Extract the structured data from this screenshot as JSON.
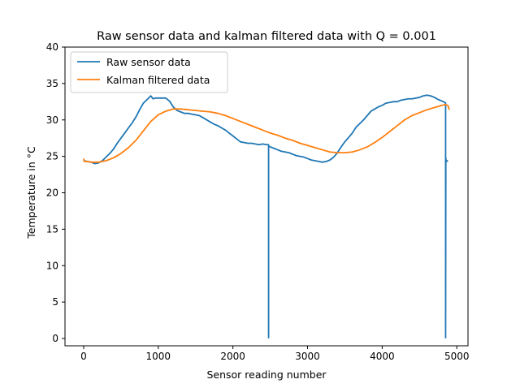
{
  "chart_data": {
    "type": "line",
    "title": "Raw sensor data and kalman filtered data with Q = 0.001",
    "xlabel": "Sensor reading number",
    "ylabel": "Temperature in °C",
    "xlim": [
      -250,
      5150
    ],
    "ylim": [
      -1,
      40
    ],
    "xticks": [
      0,
      1000,
      2000,
      3000,
      4000,
      5000
    ],
    "yticks": [
      0,
      5,
      10,
      15,
      20,
      25,
      30,
      35,
      40
    ],
    "grid": false,
    "legend_position": "top-left",
    "series": [
      {
        "name": "Raw sensor data",
        "color": "#1f77b4",
        "x": [
          0,
          50,
          100,
          150,
          200,
          250,
          300,
          350,
          400,
          450,
          500,
          550,
          600,
          650,
          700,
          750,
          800,
          850,
          900,
          930,
          960,
          1000,
          1050,
          1100,
          1150,
          1200,
          1250,
          1300,
          1350,
          1400,
          1450,
          1500,
          1550,
          1600,
          1650,
          1700,
          1750,
          1800,
          1850,
          1900,
          1950,
          2000,
          2050,
          2100,
          2150,
          2200,
          2250,
          2300,
          2350,
          2400,
          2450,
          2478,
          2478,
          2478,
          2480,
          2500,
          2550,
          2600,
          2650,
          2700,
          2750,
          2800,
          2850,
          2900,
          2950,
          3000,
          3050,
          3100,
          3150,
          3200,
          3250,
          3300,
          3350,
          3400,
          3450,
          3500,
          3550,
          3600,
          3650,
          3700,
          3750,
          3800,
          3850,
          3900,
          3950,
          4000,
          4050,
          4100,
          4150,
          4200,
          4250,
          4300,
          4350,
          4400,
          4450,
          4500,
          4550,
          4600,
          4650,
          4700,
          4750,
          4800,
          4840,
          4850,
          4850,
          4853,
          4856,
          4860,
          4870,
          4880
        ],
        "values": [
          24.4,
          24.3,
          24.2,
          24.0,
          24.1,
          24.4,
          24.9,
          25.4,
          26.0,
          26.8,
          27.5,
          28.2,
          28.9,
          29.6,
          30.4,
          31.4,
          32.3,
          32.8,
          33.3,
          32.9,
          33.0,
          33.0,
          33.0,
          33.0,
          32.6,
          31.8,
          31.3,
          31.1,
          30.9,
          30.9,
          30.8,
          30.7,
          30.6,
          30.3,
          30.0,
          29.7,
          29.4,
          29.2,
          28.9,
          28.6,
          28.2,
          27.8,
          27.4,
          27.0,
          26.9,
          26.8,
          26.8,
          26.7,
          26.6,
          26.7,
          26.6,
          26.6,
          0.1,
          26.6,
          26.4,
          26.3,
          26.1,
          25.9,
          25.7,
          25.6,
          25.5,
          25.3,
          25.1,
          25.0,
          24.9,
          24.7,
          24.5,
          24.4,
          24.3,
          24.2,
          24.3,
          24.5,
          24.9,
          25.5,
          26.3,
          27.0,
          27.6,
          28.2,
          29.0,
          29.5,
          30.0,
          30.6,
          31.2,
          31.5,
          31.8,
          32.0,
          32.3,
          32.4,
          32.5,
          32.5,
          32.7,
          32.8,
          32.9,
          32.9,
          33.0,
          33.1,
          33.3,
          33.4,
          33.3,
          33.1,
          32.8,
          32.6,
          32.4,
          32.3,
          0.1,
          24.8,
          24.4,
          24.3,
          24.4,
          24.3
        ]
      },
      {
        "name": "Kalman filtered data",
        "color": "#ff7f0e",
        "x": [
          0,
          5,
          10,
          50,
          100,
          150,
          200,
          300,
          400,
          500,
          600,
          700,
          800,
          900,
          1000,
          1100,
          1200,
          1300,
          1400,
          1500,
          1600,
          1700,
          1800,
          1900,
          2000,
          2100,
          2200,
          2300,
          2400,
          2500,
          2600,
          2700,
          2800,
          2900,
          3000,
          3100,
          3200,
          3300,
          3400,
          3500,
          3600,
          3700,
          3800,
          3900,
          4000,
          4100,
          4200,
          4300,
          4400,
          4500,
          4600,
          4700,
          4800,
          4850,
          4880,
          4900
        ],
        "values": [
          24.7,
          24.4,
          24.3,
          24.3,
          24.2,
          24.2,
          24.2,
          24.4,
          24.8,
          25.4,
          26.2,
          27.2,
          28.5,
          29.8,
          30.7,
          31.2,
          31.5,
          31.5,
          31.4,
          31.3,
          31.2,
          31.1,
          30.9,
          30.6,
          30.2,
          29.8,
          29.4,
          29.0,
          28.6,
          28.2,
          27.9,
          27.5,
          27.2,
          26.8,
          26.5,
          26.2,
          25.9,
          25.6,
          25.5,
          25.5,
          25.6,
          25.9,
          26.3,
          26.9,
          27.6,
          28.4,
          29.2,
          30.0,
          30.6,
          31.0,
          31.4,
          31.7,
          32.0,
          32.1,
          32.0,
          31.4
        ]
      }
    ]
  }
}
